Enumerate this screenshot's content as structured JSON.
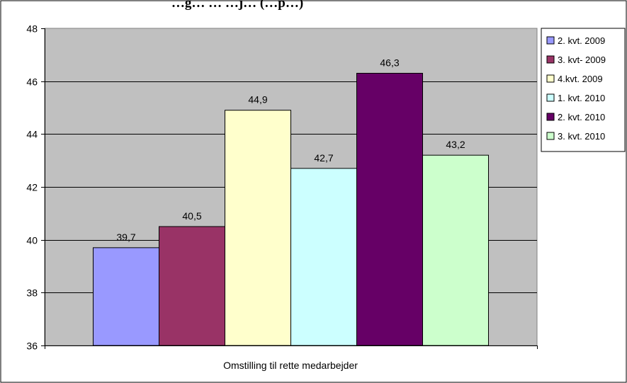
{
  "chart_data": {
    "type": "bar",
    "title": "…g… … …j… (…p…)",
    "categories": [
      "Omstilling til rette medarbejder"
    ],
    "series": [
      {
        "name": "2. kvt. 2009",
        "values": [
          39.7
        ],
        "color": "#9999ff",
        "label": "39,7"
      },
      {
        "name": "3. kvt- 2009",
        "values": [
          40.5
        ],
        "color": "#993366",
        "label": "40,5"
      },
      {
        "name": "4.kvt. 2009",
        "values": [
          44.9
        ],
        "color": "#ffffcc",
        "label": "44,9"
      },
      {
        "name": "1. kvt. 2010",
        "values": [
          42.7
        ],
        "color": "#ccffff",
        "label": "42,7"
      },
      {
        "name": "2. kvt. 2010",
        "values": [
          46.3
        ],
        "color": "#660066",
        "label": "46,3"
      },
      {
        "name": "3. kvt. 2010",
        "values": [
          43.2
        ],
        "color": "#ccffcc",
        "label": "43,2"
      }
    ],
    "ylim": [
      36,
      48
    ],
    "yticks": [
      36,
      38,
      40,
      42,
      44,
      46,
      48
    ],
    "grid": true,
    "plot_background": "#c0c0c0",
    "legend_position": "right"
  }
}
